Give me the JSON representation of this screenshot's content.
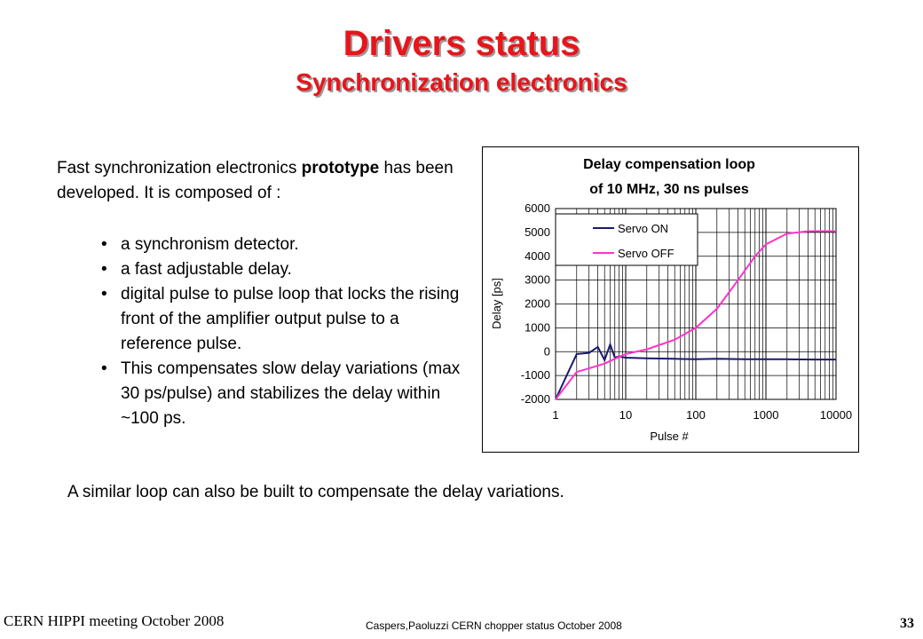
{
  "slide": {
    "title": "Drivers status",
    "subtitle": "Synchronization electronics",
    "intro_part1": "Fast synchronization electronics ",
    "intro_bold": "prototype",
    "intro_part2": " has been developed. It is composed of :",
    "bullets": [
      "a synchronism detector.",
      " a fast adjustable delay.",
      "digital pulse to pulse loop that locks the rising front of the amplifier output pulse to a reference pulse.",
      "This compensates slow delay variations (max 30 ps/pulse) and stabilizes the delay within ~100 ps."
    ],
    "closing": "A similar loop can also be built to compensate the delay variations.",
    "footer_left": "CERN HIPPI meeting October 2008",
    "footer_center": "Caspers,Paoluzzi CERN chopper status October 2008",
    "page_number": "33"
  },
  "chart_data": {
    "type": "line",
    "title_line1": "Delay compensation loop",
    "title_line2": "of 10 MHz, 30 ns pulses",
    "xlabel": "Pulse #",
    "ylabel": "Delay [ps]",
    "xscale": "log",
    "xlim": [
      1,
      10000
    ],
    "ylim": [
      -2000,
      6000
    ],
    "x_ticks": [
      "1",
      "10",
      "100",
      "1000",
      "10000"
    ],
    "y_ticks": [
      "6000",
      "5000",
      "4000",
      "3000",
      "2000",
      "1000",
      "0",
      "-1000",
      "-2000"
    ],
    "grid": true,
    "legend_position": "top-left",
    "series": [
      {
        "name": "Servo ON",
        "color": "#1a1a6e",
        "x": [
          1,
          2,
          3,
          4,
          5,
          6,
          7,
          8,
          10,
          20,
          50,
          100,
          200,
          500,
          1000,
          2000,
          5000,
          10000
        ],
        "y": [
          -2000,
          -100,
          -50,
          200,
          -350,
          300,
          -250,
          -200,
          -250,
          -280,
          -300,
          -320,
          -300,
          -320,
          -320,
          -320,
          -330,
          -330
        ]
      },
      {
        "name": "Servo OFF",
        "color": "#ff33cc",
        "x": [
          1,
          2,
          3,
          5,
          7,
          10,
          20,
          50,
          100,
          200,
          400,
          700,
          1000,
          2000,
          4000,
          7000,
          10000
        ],
        "y": [
          -2000,
          -850,
          -700,
          -500,
          -300,
          -100,
          100,
          500,
          1000,
          1800,
          3000,
          4000,
          4500,
          4950,
          5050,
          5050,
          5050
        ]
      }
    ]
  }
}
